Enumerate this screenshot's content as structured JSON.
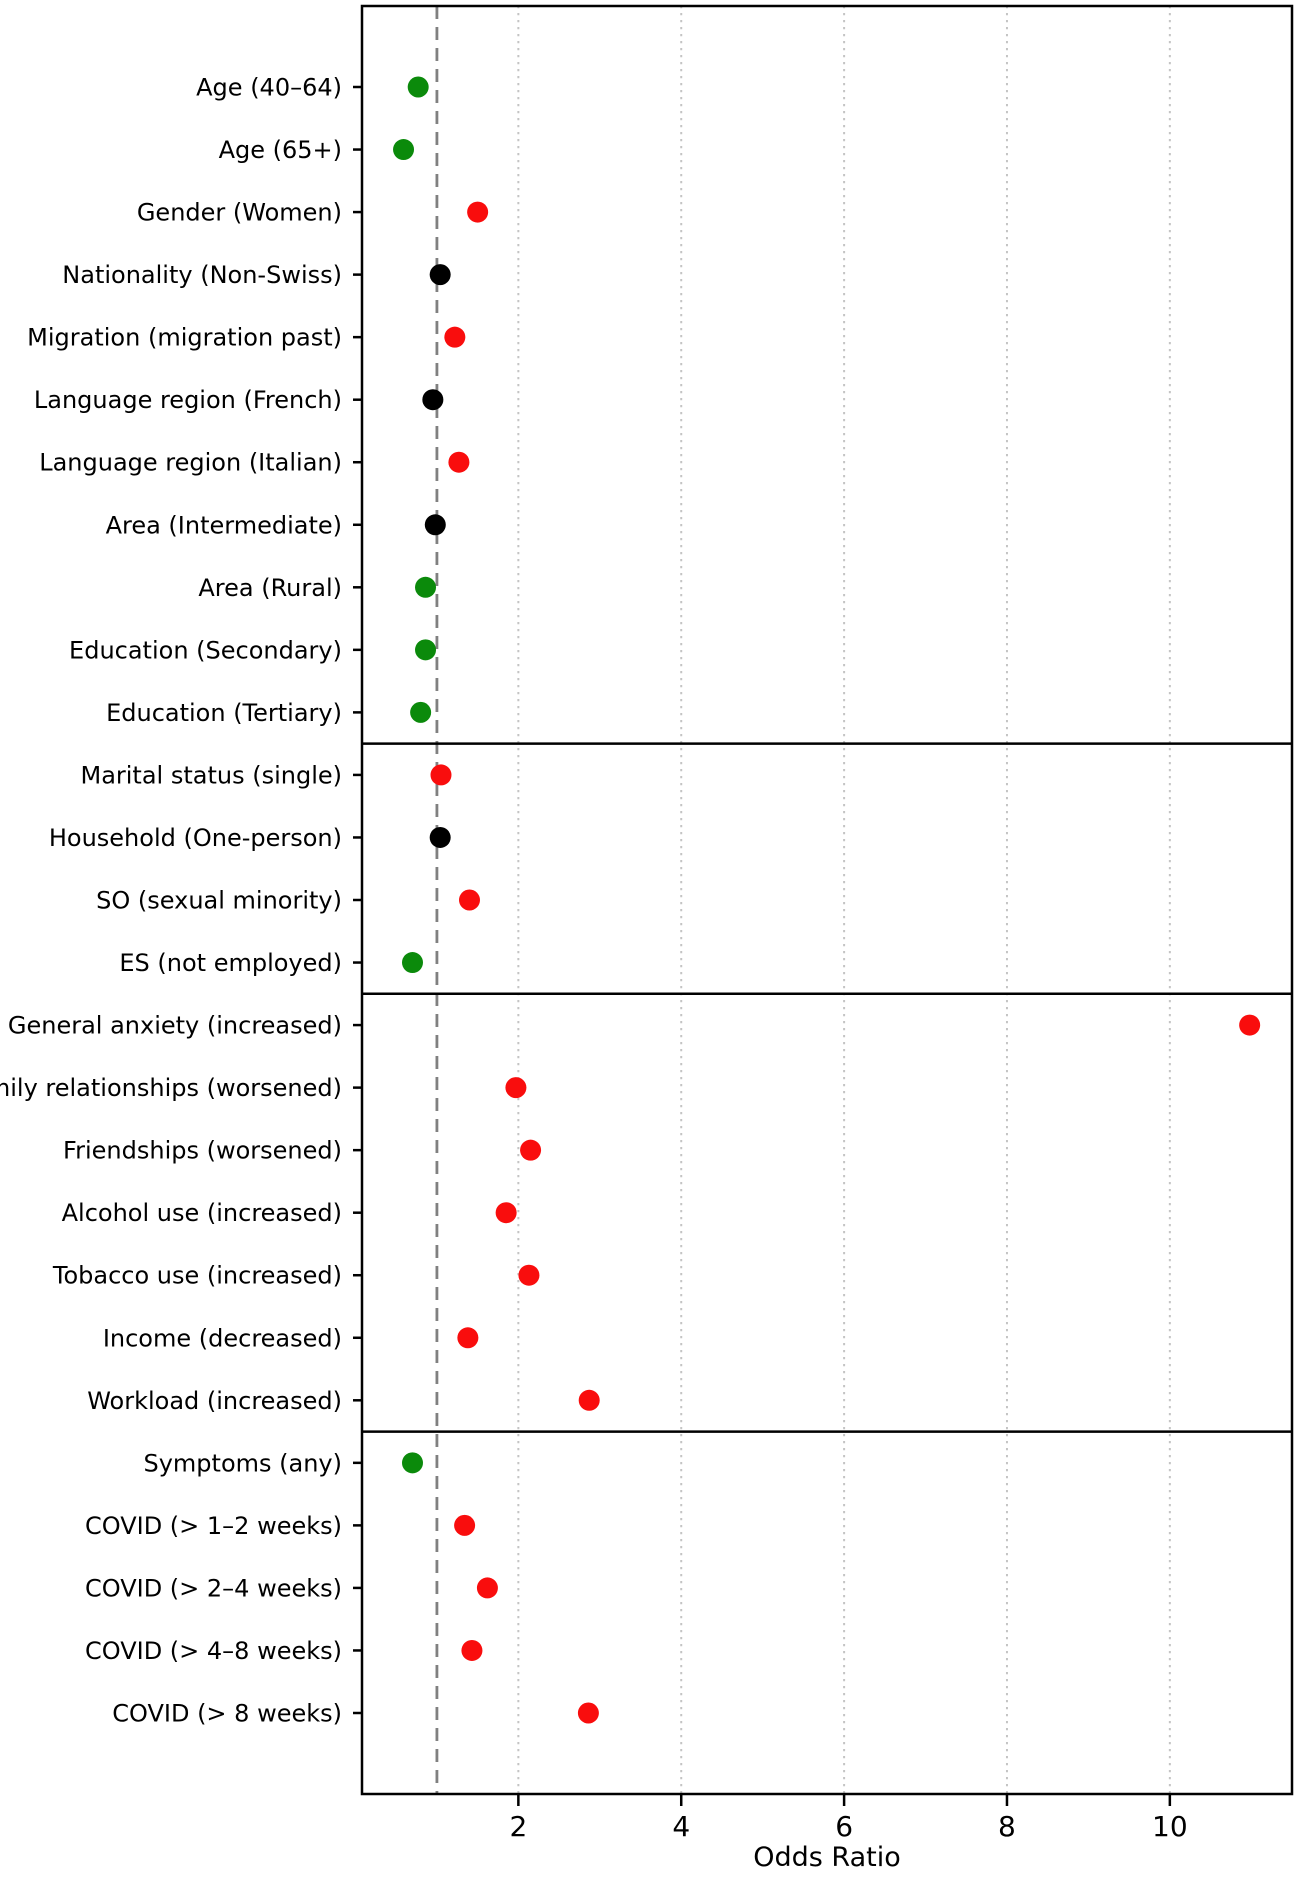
{
  "chart_data": {
    "type": "scatter",
    "subtype": "horizontal-dot-forest-plot",
    "title": "",
    "xlabel": "Odds Ratio",
    "ylabel": "",
    "x_ticks": [
      2,
      4,
      6,
      8,
      10
    ],
    "xlim": [
      0.08,
      11.5
    ],
    "reference_line_x": 1.0,
    "grid": "vertical dotted gridlines at each x tick",
    "legend": "none",
    "colors": {
      "red": "#f90d0d",
      "green": "#0b8a0b",
      "black": "#000000",
      "reference_line": "#808080",
      "gridline": "#c4c4c4",
      "frame": "#000000"
    },
    "groups": [
      {
        "items": [
          {
            "label": "Age (40–64)",
            "or": 0.77,
            "color": "green"
          },
          {
            "label": "Age (65+)",
            "or": 0.59,
            "color": "green"
          },
          {
            "label": "Gender (Women)",
            "or": 1.5,
            "color": "red"
          },
          {
            "label": "Nationality (Non-Swiss)",
            "or": 1.04,
            "color": "black"
          },
          {
            "label": "Migration (migration past)",
            "or": 1.22,
            "color": "red"
          },
          {
            "label": "Language region (French)",
            "or": 0.95,
            "color": "black"
          },
          {
            "label": "Language region (Italian)",
            "or": 1.27,
            "color": "red"
          },
          {
            "label": "Area (Intermediate)",
            "or": 0.98,
            "color": "black"
          },
          {
            "label": "Area (Rural)",
            "or": 0.86,
            "color": "green"
          },
          {
            "label": "Education (Secondary)",
            "or": 0.86,
            "color": "green"
          },
          {
            "label": "Education (Tertiary)",
            "or": 0.8,
            "color": "green"
          }
        ]
      },
      {
        "items": [
          {
            "label": "Marital status (single)",
            "or": 1.05,
            "color": "red"
          },
          {
            "label": "Household (One-person)",
            "or": 1.04,
            "color": "black"
          },
          {
            "label": "SO (sexual minority)",
            "or": 1.4,
            "color": "red"
          },
          {
            "label": "ES (not employed)",
            "or": 0.7,
            "color": "green"
          }
        ]
      },
      {
        "items": [
          {
            "label": "General anxiety (increased)",
            "or": 10.98,
            "color": "red"
          },
          {
            "label": "Family relationships (worsened)",
            "or": 1.97,
            "color": "red"
          },
          {
            "label": "Friendships (worsened)",
            "or": 2.15,
            "color": "red"
          },
          {
            "label": "Alcohol use (increased)",
            "or": 1.85,
            "color": "red"
          },
          {
            "label": "Tobacco use (increased)",
            "or": 2.13,
            "color": "red"
          },
          {
            "label": "Income (decreased)",
            "or": 1.38,
            "color": "red"
          },
          {
            "label": "Workload (increased)",
            "or": 2.87,
            "color": "red"
          }
        ]
      },
      {
        "items": [
          {
            "label": "Symptoms (any)",
            "or": 0.7,
            "color": "green"
          },
          {
            "label": "COVID (> 1–2 weeks)",
            "or": 1.34,
            "color": "red"
          },
          {
            "label": "COVID (> 2–4 weeks)",
            "or": 1.62,
            "color": "red"
          },
          {
            "label": "COVID (> 4–8 weeks)",
            "or": 1.43,
            "color": "red"
          },
          {
            "label": "COVID (> 8 weeks)",
            "or": 2.86,
            "color": "red"
          }
        ]
      }
    ]
  }
}
